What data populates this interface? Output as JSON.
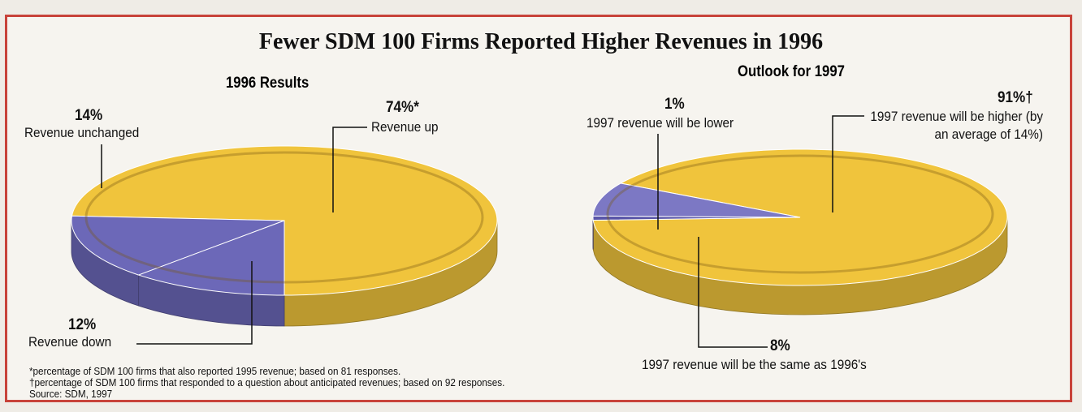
{
  "title": "Fewer SDM 100 Firms Reported Higher Revenues in 1996",
  "chart_data": [
    {
      "type": "pie",
      "title": "1996 Results",
      "categories": [
        "Revenue up",
        "Revenue unchanged",
        "Revenue down"
      ],
      "values": [
        74,
        14,
        12
      ],
      "value_labels": [
        "74%*",
        "14%",
        "12%"
      ],
      "colors": [
        "#f0c43c",
        "#6c68b8",
        "#6c68b8"
      ]
    },
    {
      "type": "pie",
      "title": "Outlook for 1997",
      "categories": [
        "1997 revenue will be higher (by an average of 14%)",
        "1997 revenue will be lower",
        "1997 revenue will be the same as 1996's"
      ],
      "values": [
        91,
        1,
        8
      ],
      "value_labels": [
        "91%†",
        "1%",
        "8%"
      ],
      "colors": [
        "#f0c43c",
        "#5a56a8",
        "#7c78c4"
      ]
    }
  ],
  "notes": [
    "*percentage of SDM 100 firms that also reported 1995 revenue; based on 81 responses.",
    "†percentage of SDM 100 firms that responded to a question about anticipated revenues; based on 92 responses.",
    "Source: SDM, 1997"
  ]
}
